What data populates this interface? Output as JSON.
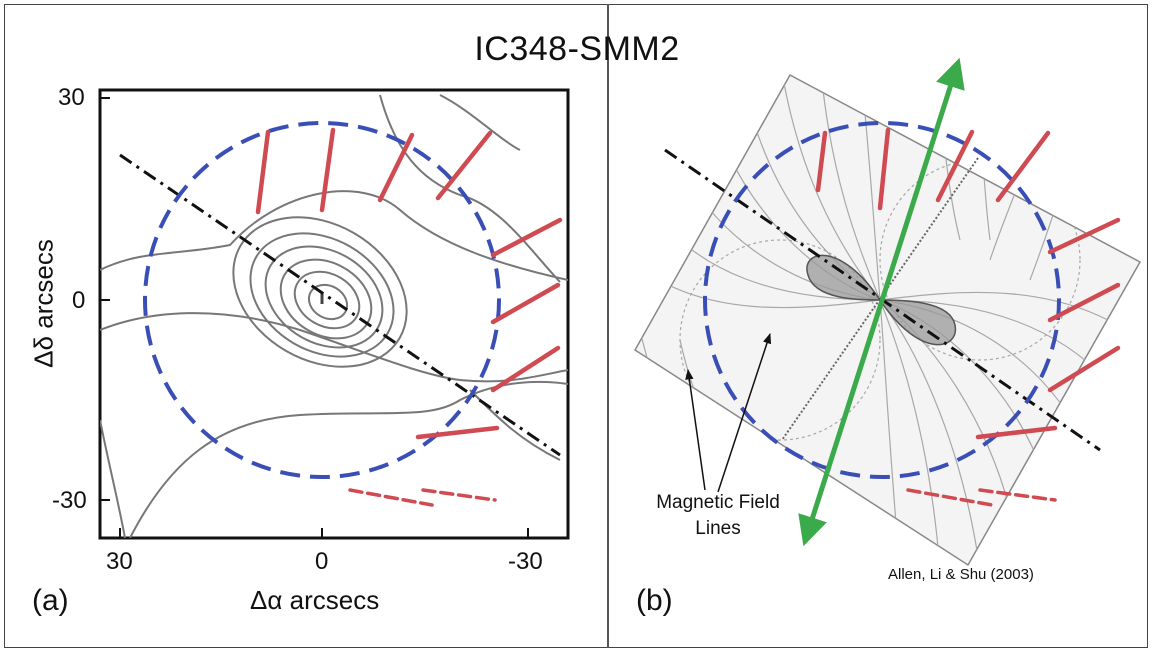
{
  "figure": {
    "title": "IC348-SMM2",
    "panel_a": {
      "label": "(a)",
      "x_axis_label": "Δα arcsecs",
      "y_axis_label": "Δδ arcsecs",
      "x_ticks": [
        "30",
        "0",
        "-30"
      ],
      "y_ticks": [
        "30",
        "0",
        "-30"
      ]
    },
    "panel_b": {
      "label": "(b)",
      "annotation": {
        "line1": "Magnetic Field",
        "line2": "Lines"
      },
      "citation": "Allen, Li & Shu (2003)"
    },
    "colors": {
      "polarization_vectors": "#d04a52",
      "circle": "#3a4fb5",
      "outflow_axis": "#111111",
      "field_axis": "#3aaa4a",
      "contours": "#777777"
    }
  }
}
